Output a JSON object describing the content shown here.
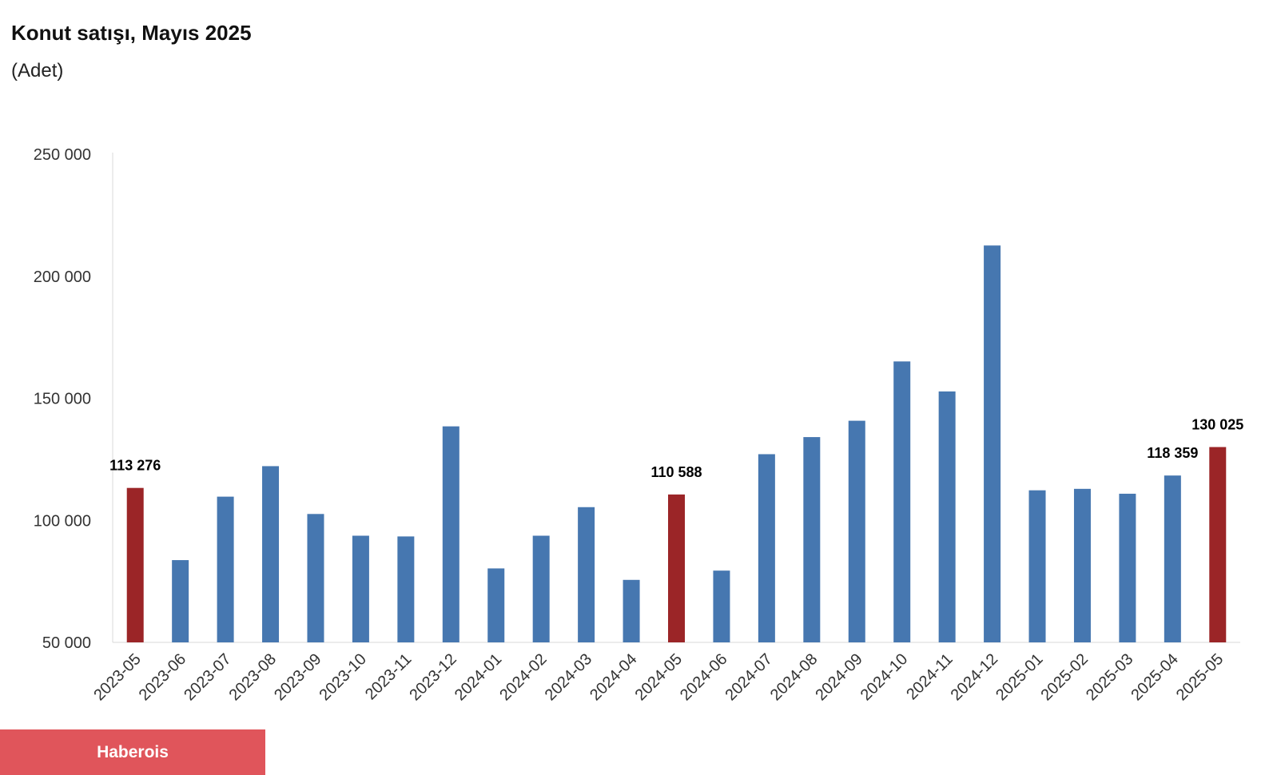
{
  "chart_data": {
    "type": "bar",
    "title": "Konut satışı, Mayıs 2025",
    "subtitle": "(Adet)",
    "categories": [
      "2023-05",
      "2023-06",
      "2023-07",
      "2023-08",
      "2023-09",
      "2023-10",
      "2023-11",
      "2023-12",
      "2024-01",
      "2024-02",
      "2024-03",
      "2024-04",
      "2024-05",
      "2024-06",
      "2024-07",
      "2024-08",
      "2024-09",
      "2024-10",
      "2024-11",
      "2024-12",
      "2025-01",
      "2025-02",
      "2025-03",
      "2025-04",
      "2025-05"
    ],
    "values": [
      113276,
      83700,
      109700,
      122200,
      102600,
      93700,
      93400,
      138500,
      80300,
      93700,
      105400,
      75600,
      110588,
      79400,
      127100,
      134100,
      140800,
      165100,
      152800,
      212600,
      112300,
      112900,
      110900,
      118359,
      130025
    ],
    "data_labels": [
      {
        "category": "2023-05",
        "text": "113 276"
      },
      {
        "category": "2024-05",
        "text": "110 588"
      },
      {
        "category": "2025-04",
        "text": "118 359"
      },
      {
        "category": "2025-05",
        "text": "130 025"
      }
    ],
    "highlighted": [
      "2023-05",
      "2024-05",
      "2025-05"
    ],
    "ylim": [
      50000,
      250000
    ],
    "yticks": [
      {
        "value": 50000,
        "label": "50 000"
      },
      {
        "value": 100000,
        "label": "100 000"
      },
      {
        "value": 150000,
        "label": "150 000"
      },
      {
        "value": 200000,
        "label": "200 000"
      },
      {
        "value": 250000,
        "label": "250 000"
      }
    ],
    "xlabel": "",
    "ylabel": "",
    "grid": false,
    "colors": {
      "bar": "#4677b0",
      "highlight": "#9b2527",
      "axis": "#d9d9d9"
    }
  },
  "brand": {
    "label": "Haberois",
    "color": "#e0555b"
  }
}
